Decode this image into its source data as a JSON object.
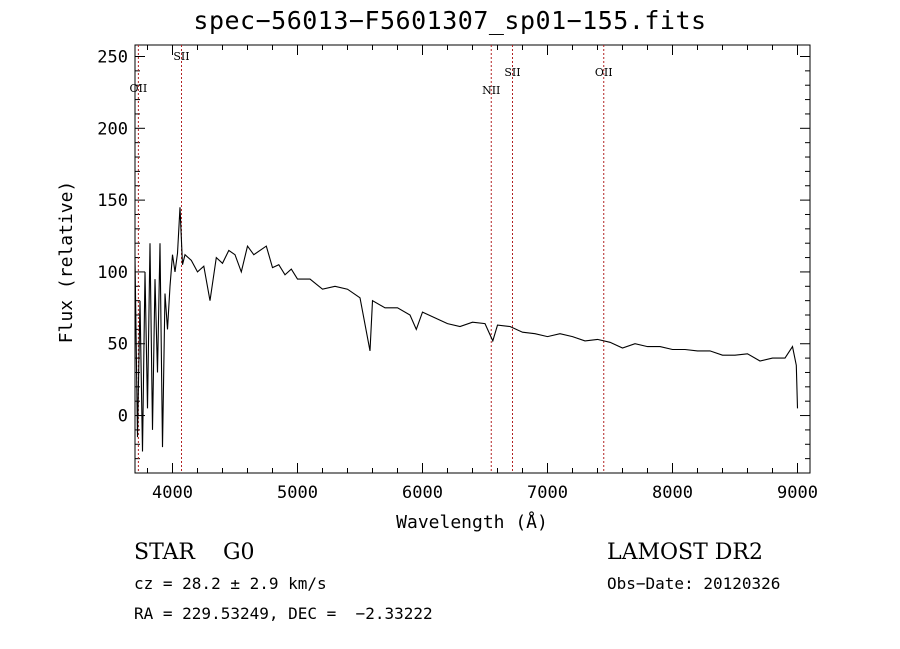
{
  "chart_data": {
    "type": "line",
    "title": "spec−56013−F5601307_sp01−155.fits",
    "xlabel": "Wavelength (Å)",
    "ylabel": "Flux (relative)",
    "xlim": [
      3700,
      9100
    ],
    "ylim": [
      -40,
      258
    ],
    "x_ticks": [
      4000,
      5000,
      6000,
      7000,
      8000,
      9000
    ],
    "y_ticks": [
      0,
      50,
      100,
      150,
      200,
      250
    ],
    "grid": false,
    "series": [
      {
        "x": [
          3700,
          3720,
          3740,
          3760,
          3780,
          3800,
          3820,
          3840,
          3860,
          3880,
          3900,
          3920,
          3940,
          3960,
          3980,
          4000,
          4020,
          4040,
          4060,
          4080,
          4100,
          4150,
          4200,
          4250,
          4300,
          4350,
          4400,
          4450,
          4500,
          4550,
          4600,
          4650,
          4700,
          4750,
          4800,
          4850,
          4900,
          4950,
          5000,
          5100,
          5200,
          5300,
          5400,
          5500,
          5580,
          5600,
          5700,
          5800,
          5900,
          5950,
          6000,
          6100,
          6200,
          6300,
          6400,
          6500,
          6562,
          6600,
          6700,
          6800,
          6900,
          7000,
          7100,
          7200,
          7300,
          7400,
          7500,
          7600,
          7700,
          7800,
          7900,
          8000,
          8100,
          8200,
          8300,
          8400,
          8500,
          8600,
          8700,
          8800,
          8900,
          8960,
          8990,
          9000
        ],
        "y": [
          110,
          -15,
          80,
          -25,
          100,
          5,
          120,
          -10,
          95,
          30,
          120,
          -22,
          85,
          60,
          90,
          112,
          100,
          113,
          145,
          105,
          112,
          108,
          100,
          104,
          80,
          110,
          106,
          115,
          112,
          100,
          118,
          112,
          115,
          118,
          103,
          105,
          98,
          102,
          95,
          95,
          88,
          90,
          88,
          82,
          45,
          80,
          75,
          75,
          70,
          60,
          72,
          68,
          64,
          62,
          65,
          64,
          52,
          63,
          62,
          58,
          57,
          55,
          57,
          55,
          52,
          53,
          51,
          47,
          50,
          48,
          48,
          46,
          46,
          45,
          45,
          42,
          42,
          43,
          38,
          40,
          40,
          48,
          35,
          5
        ]
      }
    ],
    "lines": [
      {
        "label": "OII",
        "x": 3727
      },
      {
        "label": "SII",
        "x": 4072
      },
      {
        "label": "NII",
        "x": 6550
      },
      {
        "label": "SII",
        "x": 6720
      },
      {
        "label": "OII",
        "x": 7450
      }
    ]
  },
  "info": {
    "class_line": "STAR    G0",
    "survey": "LAMOST DR2",
    "cz": "cz = 28.2 ± 2.9 km/s",
    "obs_date": "Obs−Date: 20120326",
    "radec": "RA = 229.53249, DEC =  −2.33222"
  }
}
